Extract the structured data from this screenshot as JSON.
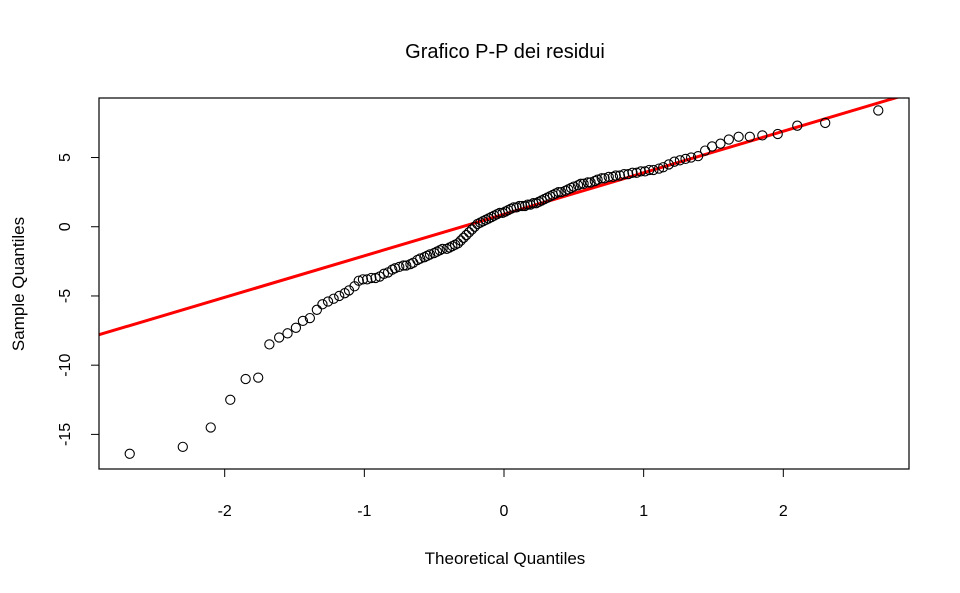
{
  "chart_data": {
    "type": "scatter",
    "title": "Grafico P-P dei residui",
    "xlabel": "Theoretical Quantiles",
    "ylabel": "Sample Quantiles",
    "xlim": [
      -2.9,
      2.9
    ],
    "ylim": [
      -17.5,
      9.3
    ],
    "x_ticks": [
      -2,
      -1,
      0,
      1,
      2
    ],
    "y_ticks": [
      -15,
      -10,
      -5,
      0,
      5
    ],
    "grid": false,
    "point_color": "#000000",
    "line_color": "#ff0000",
    "reference_line": {
      "intercept": 0.9,
      "slope": 3.0
    },
    "points": [
      [
        -2.68,
        -16.4
      ],
      [
        -2.3,
        -15.9
      ],
      [
        -2.1,
        -14.5
      ],
      [
        -1.96,
        -12.5
      ],
      [
        -1.85,
        -11.0
      ],
      [
        -1.76,
        -10.9
      ],
      [
        -1.68,
        -8.5
      ],
      [
        -1.61,
        -8.0
      ],
      [
        -1.55,
        -7.7
      ],
      [
        -1.49,
        -7.3
      ],
      [
        -1.44,
        -6.8
      ],
      [
        -1.39,
        -6.6
      ],
      [
        -1.34,
        -6.0
      ],
      [
        -1.3,
        -5.6
      ],
      [
        -1.26,
        -5.4
      ],
      [
        -1.22,
        -5.2
      ],
      [
        -1.18,
        -5.0
      ],
      [
        -1.14,
        -4.8
      ],
      [
        -1.11,
        -4.6
      ],
      [
        -1.07,
        -4.3
      ],
      [
        -1.04,
        -3.9
      ],
      [
        -1.01,
        -3.8
      ],
      [
        -0.98,
        -3.8
      ],
      [
        -0.95,
        -3.7
      ],
      [
        -0.92,
        -3.7
      ],
      [
        -0.89,
        -3.6
      ],
      [
        -0.86,
        -3.4
      ],
      [
        -0.83,
        -3.3
      ],
      [
        -0.8,
        -3.1
      ],
      [
        -0.78,
        -3.0
      ],
      [
        -0.75,
        -2.9
      ],
      [
        -0.72,
        -2.8
      ],
      [
        -0.7,
        -2.8
      ],
      [
        -0.67,
        -2.7
      ],
      [
        -0.65,
        -2.6
      ],
      [
        -0.62,
        -2.4
      ],
      [
        -0.6,
        -2.3
      ],
      [
        -0.57,
        -2.2
      ],
      [
        -0.55,
        -2.1
      ],
      [
        -0.53,
        -2.0
      ],
      [
        -0.5,
        -1.9
      ],
      [
        -0.48,
        -1.8
      ],
      [
        -0.46,
        -1.7
      ],
      [
        -0.44,
        -1.6
      ],
      [
        -0.41,
        -1.6
      ],
      [
        -0.39,
        -1.5
      ],
      [
        -0.37,
        -1.4
      ],
      [
        -0.35,
        -1.3
      ],
      [
        -0.33,
        -1.2
      ],
      [
        -0.31,
        -1.0
      ],
      [
        -0.29,
        -0.8
      ],
      [
        -0.27,
        -0.6
      ],
      [
        -0.25,
        -0.4
      ],
      [
        -0.23,
        -0.2
      ],
      [
        -0.21,
        0.0
      ],
      [
        -0.19,
        0.2
      ],
      [
        -0.17,
        0.3
      ],
      [
        -0.15,
        0.4
      ],
      [
        -0.13,
        0.5
      ],
      [
        -0.11,
        0.6
      ],
      [
        -0.09,
        0.7
      ],
      [
        -0.07,
        0.8
      ],
      [
        -0.05,
        0.9
      ],
      [
        -0.03,
        1.0
      ],
      [
        -0.01,
        1.0
      ],
      [
        0.01,
        1.1
      ],
      [
        0.03,
        1.2
      ],
      [
        0.05,
        1.3
      ],
      [
        0.07,
        1.4
      ],
      [
        0.09,
        1.4
      ],
      [
        0.11,
        1.5
      ],
      [
        0.13,
        1.5
      ],
      [
        0.15,
        1.5
      ],
      [
        0.17,
        1.6
      ],
      [
        0.19,
        1.6
      ],
      [
        0.21,
        1.7
      ],
      [
        0.23,
        1.7
      ],
      [
        0.25,
        1.8
      ],
      [
        0.27,
        1.9
      ],
      [
        0.29,
        2.0
      ],
      [
        0.31,
        2.1
      ],
      [
        0.33,
        2.2
      ],
      [
        0.35,
        2.3
      ],
      [
        0.37,
        2.4
      ],
      [
        0.39,
        2.5
      ],
      [
        0.41,
        2.5
      ],
      [
        0.44,
        2.6
      ],
      [
        0.46,
        2.7
      ],
      [
        0.48,
        2.8
      ],
      [
        0.5,
        2.9
      ],
      [
        0.53,
        3.0
      ],
      [
        0.55,
        3.1
      ],
      [
        0.57,
        3.1
      ],
      [
        0.6,
        3.2
      ],
      [
        0.62,
        3.2
      ],
      [
        0.65,
        3.3
      ],
      [
        0.67,
        3.4
      ],
      [
        0.7,
        3.5
      ],
      [
        0.72,
        3.5
      ],
      [
        0.75,
        3.6
      ],
      [
        0.78,
        3.6
      ],
      [
        0.8,
        3.7
      ],
      [
        0.83,
        3.7
      ],
      [
        0.86,
        3.8
      ],
      [
        0.89,
        3.8
      ],
      [
        0.92,
        3.9
      ],
      [
        0.95,
        3.9
      ],
      [
        0.98,
        4.0
      ],
      [
        1.01,
        4.0
      ],
      [
        1.04,
        4.1
      ],
      [
        1.07,
        4.1
      ],
      [
        1.11,
        4.2
      ],
      [
        1.14,
        4.3
      ],
      [
        1.18,
        4.5
      ],
      [
        1.22,
        4.7
      ],
      [
        1.26,
        4.8
      ],
      [
        1.3,
        4.9
      ],
      [
        1.34,
        5.0
      ],
      [
        1.39,
        5.1
      ],
      [
        1.44,
        5.5
      ],
      [
        1.49,
        5.8
      ],
      [
        1.55,
        6.0
      ],
      [
        1.61,
        6.3
      ],
      [
        1.68,
        6.5
      ],
      [
        1.76,
        6.5
      ],
      [
        1.85,
        6.6
      ],
      [
        1.96,
        6.7
      ],
      [
        2.1,
        7.3
      ],
      [
        2.3,
        7.5
      ],
      [
        2.68,
        8.4
      ]
    ]
  }
}
